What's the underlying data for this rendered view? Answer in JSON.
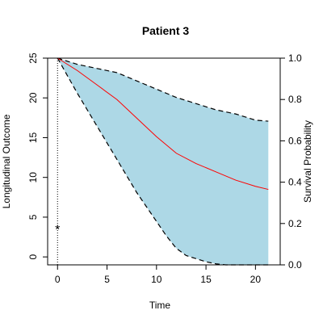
{
  "chart_data": {
    "type": "line",
    "title": "Patient 3",
    "xlabel": "Time",
    "ylabel_left": "Longitudinal Outcome",
    "ylabel_right": "Survival Probability",
    "xlim": [
      -1,
      22.5
    ],
    "ylim_left": [
      -1,
      25
    ],
    "ylim_right": [
      0,
      1
    ],
    "x_ticks": [
      0,
      5,
      10,
      15,
      20
    ],
    "y_ticks_left": [
      0,
      5,
      10,
      15,
      20,
      25
    ],
    "y_ticks_right": [
      0.0,
      0.2,
      0.4,
      0.6,
      0.8,
      1.0
    ],
    "y_tick_labels_right": [
      "0.0",
      "0.2",
      "0.4",
      "0.6",
      "0.8",
      "1.0"
    ],
    "observation": {
      "x": 0,
      "y": 3.5,
      "marker": "*"
    },
    "last_observation_time": 0,
    "series": [
      {
        "role": "survival-estimate",
        "color": "#ff0000",
        "x": [
          0,
          2,
          4,
          6,
          8,
          10,
          12,
          14,
          16,
          18,
          20,
          21.3
        ],
        "y": [
          1.0,
          0.94,
          0.87,
          0.8,
          0.71,
          0.62,
          0.54,
          0.49,
          0.45,
          0.41,
          0.38,
          0.365
        ]
      },
      {
        "role": "upper-bound",
        "style": "dashed",
        "x": [
          0,
          2,
          4,
          6,
          8,
          10,
          12,
          14,
          16,
          18,
          20,
          21.3
        ],
        "y": [
          1.0,
          0.97,
          0.95,
          0.93,
          0.89,
          0.85,
          0.81,
          0.78,
          0.75,
          0.73,
          0.7,
          0.695
        ]
      },
      {
        "role": "lower-bound",
        "style": "dashed",
        "x": [
          0,
          2,
          4,
          6,
          8,
          10,
          11,
          12,
          13,
          14,
          15,
          16,
          17,
          21.3
        ],
        "y": [
          1.0,
          0.83,
          0.67,
          0.51,
          0.35,
          0.21,
          0.14,
          0.08,
          0.045,
          0.03,
          0.015,
          0.005,
          0.0,
          0.0
        ]
      }
    ],
    "band_color": "#add8e6",
    "grid": false
  }
}
